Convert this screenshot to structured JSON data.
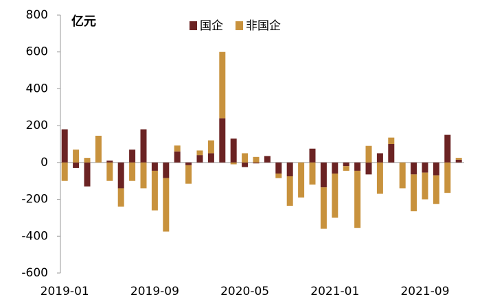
{
  "chart_data": {
    "type": "stacked_bar",
    "unit_label": "亿元",
    "categories": [
      "2019-01",
      null,
      null,
      null,
      null,
      null,
      null,
      null,
      "2019-09",
      null,
      null,
      null,
      null,
      null,
      null,
      null,
      "2020-05",
      null,
      null,
      null,
      null,
      null,
      null,
      null,
      "2021-01",
      null,
      null,
      null,
      null,
      null,
      null,
      null,
      "2021-09",
      null,
      null,
      null
    ],
    "series": [
      {
        "name": "国企",
        "color": "#6b2323",
        "values": [
          180,
          -30,
          -130,
          0,
          10,
          -140,
          70,
          180,
          -45,
          -85,
          60,
          -15,
          40,
          50,
          240,
          130,
          -25,
          -5,
          35,
          -60,
          -75,
          0,
          75,
          -135,
          -60,
          -20,
          -45,
          -65,
          50,
          100,
          0,
          -65,
          -55,
          -70,
          150,
          15
        ]
      },
      {
        "name": "非国企",
        "color": "#c8923d",
        "values": [
          -100,
          70,
          25,
          145,
          -100,
          -100,
          -100,
          -140,
          -215,
          -290,
          32,
          -100,
          25,
          70,
          360,
          -10,
          50,
          30,
          0,
          -25,
          -160,
          -190,
          -120,
          -225,
          -240,
          -25,
          -310,
          90,
          -170,
          35,
          -140,
          -200,
          -145,
          -155,
          -165,
          10
        ]
      }
    ],
    "ylim": [
      -600,
      800
    ],
    "yticks": [
      -600,
      -400,
      -200,
      0,
      200,
      400,
      600,
      800
    ],
    "legend": "top"
  }
}
